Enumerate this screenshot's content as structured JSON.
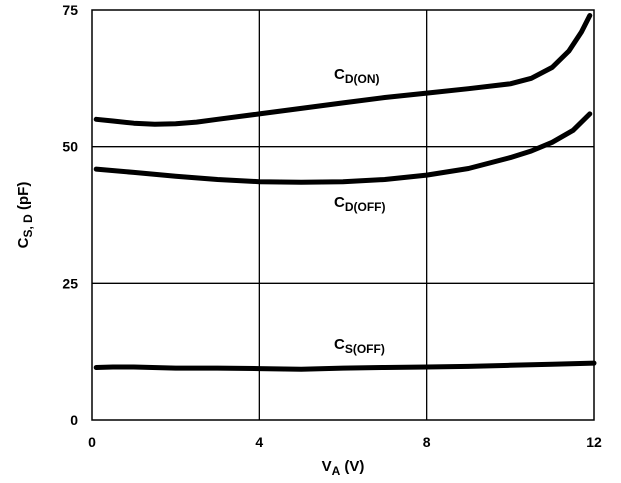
{
  "chart_data": {
    "type": "line",
    "xlabel": {
      "main": "V",
      "sub": "A",
      "unit": " (V)"
    },
    "ylabel": {
      "main": "C",
      "sub": "S, D",
      "unit": " (pF)"
    },
    "xlim": [
      0,
      12
    ],
    "ylim": [
      0,
      75
    ],
    "x_ticks": [
      0,
      4,
      8,
      12
    ],
    "y_ticks": [
      0,
      25,
      50,
      75
    ],
    "x_tick_labels": [
      "0",
      "4",
      "8",
      "12"
    ],
    "y_tick_labels": [
      "0",
      "25",
      "50",
      "75"
    ],
    "grid": true,
    "series": [
      {
        "label_main": "C",
        "label_sub": "D(ON)",
        "points": [
          [
            0.1,
            55
          ],
          [
            0.5,
            54.7
          ],
          [
            1,
            54.3
          ],
          [
            1.5,
            54.1
          ],
          [
            2,
            54.2
          ],
          [
            2.5,
            54.5
          ],
          [
            3,
            55
          ],
          [
            4,
            56
          ],
          [
            5,
            57
          ],
          [
            6,
            58
          ],
          [
            7,
            59
          ],
          [
            8,
            59.8
          ],
          [
            9,
            60.6
          ],
          [
            10,
            61.5
          ],
          [
            10.5,
            62.5
          ],
          [
            11,
            64.5
          ],
          [
            11.4,
            67.5
          ],
          [
            11.7,
            71
          ],
          [
            11.9,
            74
          ]
        ]
      },
      {
        "label_main": "C",
        "label_sub": "D(OFF)",
        "points": [
          [
            0.1,
            45.9
          ],
          [
            1,
            45.3
          ],
          [
            2,
            44.6
          ],
          [
            3,
            44
          ],
          [
            4,
            43.6
          ],
          [
            5,
            43.5
          ],
          [
            6,
            43.6
          ],
          [
            7,
            44
          ],
          [
            8,
            44.8
          ],
          [
            9,
            46
          ],
          [
            10,
            48
          ],
          [
            10.5,
            49.2
          ],
          [
            11,
            50.8
          ],
          [
            11.5,
            53
          ],
          [
            11.9,
            56
          ]
        ]
      },
      {
        "label_main": "C",
        "label_sub": "S(OFF)",
        "points": [
          [
            0.1,
            9.6
          ],
          [
            0.5,
            9.7
          ],
          [
            1,
            9.7
          ],
          [
            2,
            9.5
          ],
          [
            3,
            9.5
          ],
          [
            4,
            9.4
          ],
          [
            5,
            9.3
          ],
          [
            6,
            9.5
          ],
          [
            7,
            9.6
          ],
          [
            8,
            9.7
          ],
          [
            9,
            9.8
          ],
          [
            10,
            10
          ],
          [
            11,
            10.2
          ],
          [
            12,
            10.4
          ]
        ]
      }
    ]
  }
}
